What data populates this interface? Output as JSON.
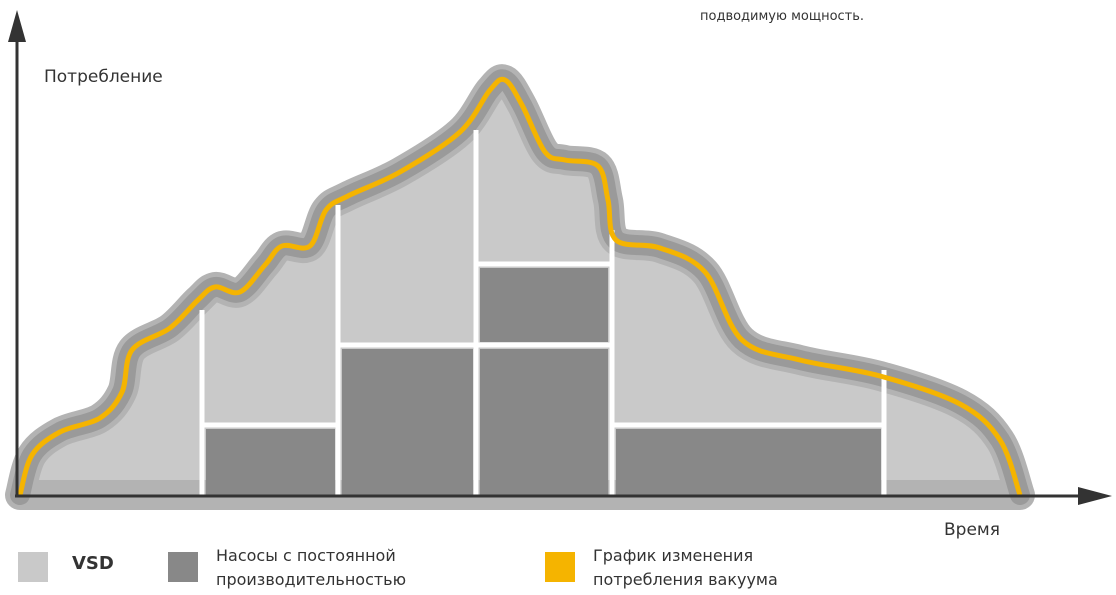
{
  "top_note": "подводимую мощность.",
  "y_axis_label": "Потребление",
  "x_axis_label": "Время",
  "legend": [
    {
      "lines": [
        "VSD"
      ]
    },
    {
      "lines": [
        "Насосы с постоянной",
        "производительностью"
      ]
    },
    {
      "lines": [
        "График изменения",
        "потребления вакуума"
      ]
    }
  ]
}
